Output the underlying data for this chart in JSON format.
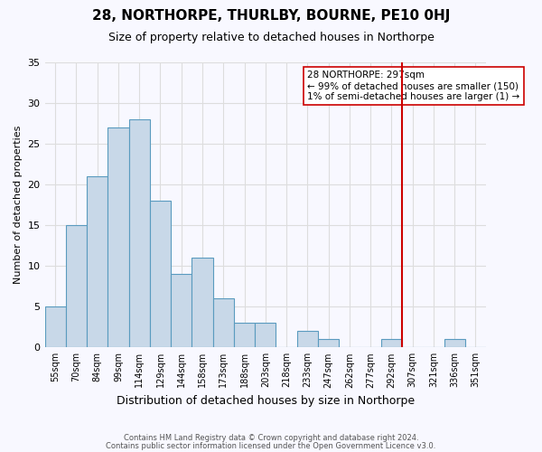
{
  "title": "28, NORTHORPE, THURLBY, BOURNE, PE10 0HJ",
  "subtitle": "Size of property relative to detached houses in Northorpe",
  "xlabel": "Distribution of detached houses by size in Northorpe",
  "ylabel": "Number of detached properties",
  "bar_color": "#c8d8e8",
  "bar_edge_color": "#5a9bbf",
  "bins": [
    "55sqm",
    "70sqm",
    "84sqm",
    "99sqm",
    "114sqm",
    "129sqm",
    "144sqm",
    "158sqm",
    "173sqm",
    "188sqm",
    "203sqm",
    "218sqm",
    "233sqm",
    "247sqm",
    "262sqm",
    "277sqm",
    "292sqm",
    "307sqm",
    "321sqm",
    "336sqm",
    "351sqm"
  ],
  "values": [
    5,
    15,
    21,
    27,
    28,
    18,
    9,
    11,
    6,
    3,
    3,
    0,
    2,
    1,
    0,
    0,
    1,
    0,
    0,
    1,
    0
  ],
  "ylim": [
    0,
    35
  ],
  "yticks": [
    0,
    5,
    10,
    15,
    20,
    25,
    30,
    35
  ],
  "vline_x": 16.5,
  "vline_color": "#cc0000",
  "annotation_title": "28 NORTHORPE: 297sqm",
  "annotation_line1": "← 99% of detached houses are smaller (150)",
  "annotation_line2": "1% of semi-detached houses are larger (1) →",
  "footer1": "Contains HM Land Registry data © Crown copyright and database right 2024.",
  "footer2": "Contains public sector information licensed under the Open Government Licence v3.0.",
  "background_color": "#f8f8ff",
  "grid_color": "#dddddd"
}
